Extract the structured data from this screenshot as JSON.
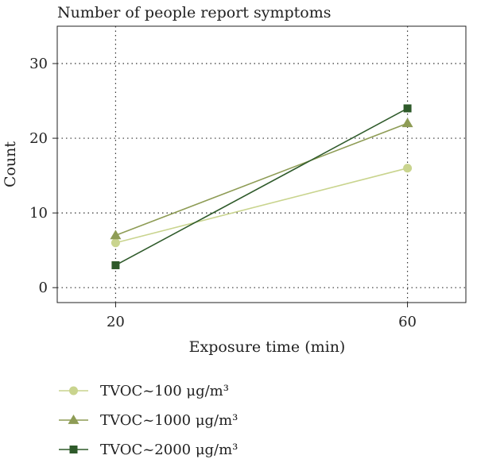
{
  "chart_data": {
    "type": "line",
    "title": "Number of people report symptoms",
    "xlabel": "Exposure time (min)",
    "ylabel": "Count",
    "x": [
      20,
      60
    ],
    "xlim": [
      12,
      68
    ],
    "ylim": [
      -2,
      35
    ],
    "xticks": [
      "20",
      "60"
    ],
    "yticks": [
      "0",
      "10",
      "20",
      "30"
    ],
    "grid": true,
    "legend_position": "bottom",
    "series": [
      {
        "name": "TVOC~100 μg/m³",
        "values": [
          6,
          16
        ],
        "marker": "circle",
        "color": "#c9d48e"
      },
      {
        "name": "TVOC~1000 μg/m³",
        "values": [
          7,
          22
        ],
        "marker": "triangle",
        "color": "#8e9c55"
      },
      {
        "name": "TVOC~2000 μg/m³",
        "values": [
          3,
          24
        ],
        "marker": "square",
        "color": "#2e5a2a"
      }
    ]
  }
}
